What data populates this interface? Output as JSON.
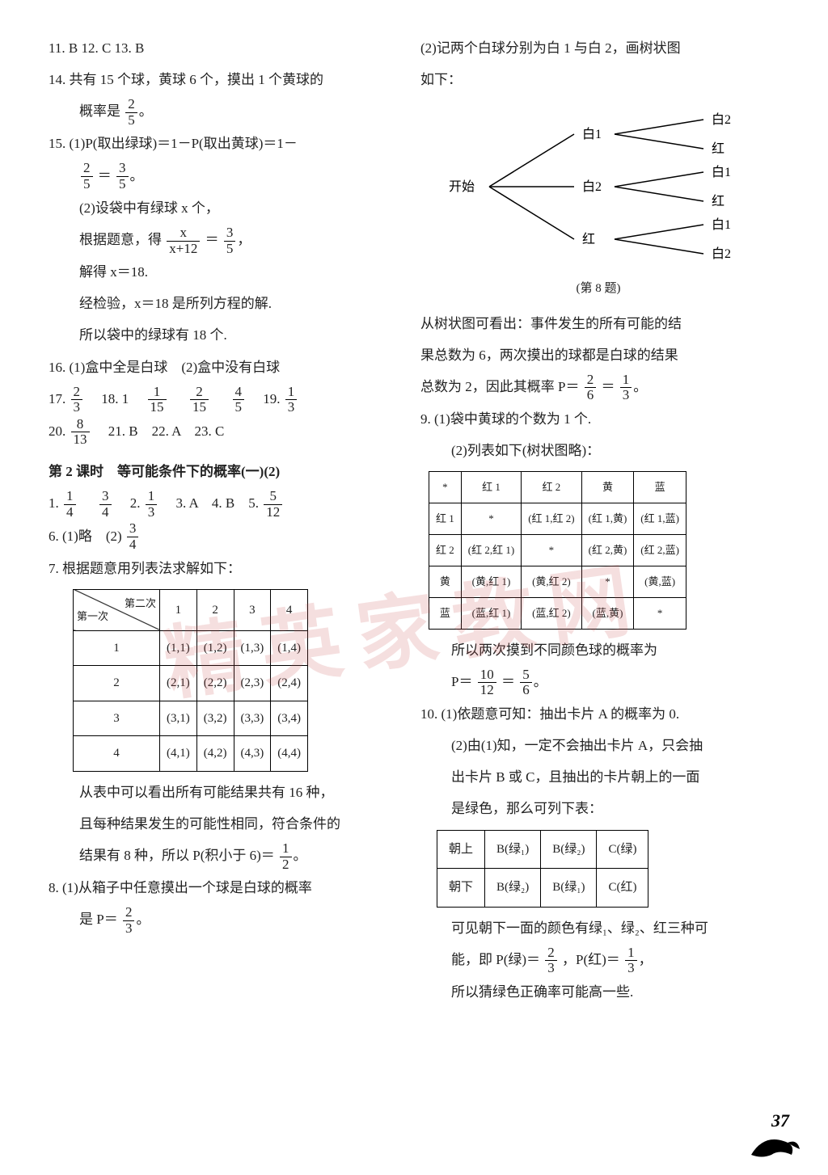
{
  "page_number": "37",
  "colors": {
    "text": "#222222",
    "background": "#ffffff",
    "border": "#000000",
    "watermark": "rgba(200,80,80,0.18)"
  },
  "watermark_text": "精英家教网",
  "left": {
    "l11": "11. B  12. C  13. B",
    "l14a": "14. 共有 15 个球，黄球 6 个，摸出 1 个黄球的",
    "l14b": "概率是",
    "f14n": "2",
    "f14d": "5",
    "l14c": "。",
    "l15a": "15. (1)P(取出绿球)＝1－P(取出黄球)＝1－",
    "f15an": "2",
    "f15ad": "5",
    "eq": "＝",
    "f15bn": "3",
    "f15bd": "5",
    "l15b": "。",
    "l15c": "(2)设袋中有绿球 x 个，",
    "l15d": "根据题意，得",
    "f15cn": "x",
    "f15cd": "x+12",
    "f15dn": "3",
    "f15dd": "5",
    "comma": "，",
    "l15e": "解得 x＝18.",
    "l15f": "经检验，x＝18 是所列方程的解.",
    "l15g": "所以袋中的绿球有 18 个.",
    "l16": "16. (1)盒中全是白球　(2)盒中没有白球",
    "l17a": "17.",
    "f17n": "2",
    "f17d": "3",
    "l18": "　18. 1　",
    "f18an": "1",
    "f18ad": "15",
    "sp": "　",
    "f18bn": "2",
    "f18bd": "15",
    "f18cn": "4",
    "f18cd": "5",
    "l19": "　19.",
    "f19n": "1",
    "f19d": "3",
    "l20a": "20.",
    "f20n": "8",
    "f20d": "13",
    "l20b": "　21. B　22. A　23. C",
    "sec2": "第 2 课时　等可能条件下的概率(一)(2)",
    "q1": "1.",
    "f1an": "1",
    "f1ad": "4",
    "f1bn": "3",
    "f1bd": "4",
    "q2": "　2.",
    "f2n": "1",
    "f2d": "3",
    "q345": "　3. A　4. B　5.",
    "f5n": "5",
    "f5d": "12",
    "q6": "6. (1)略　(2)",
    "f6n": "3",
    "f6d": "4",
    "q7": "7. 根据题意用列表法求解如下：",
    "t7": {
      "header": [
        "1",
        "2",
        "3",
        "4"
      ],
      "rowlbl": [
        "1",
        "2",
        "3",
        "4"
      ],
      "cells": [
        [
          "(1,1)",
          "(1,2)",
          "(1,3)",
          "(1,4)"
        ],
        [
          "(2,1)",
          "(2,2)",
          "(2,3)",
          "(2,4)"
        ],
        [
          "(3,1)",
          "(3,2)",
          "(3,3)",
          "(3,4)"
        ],
        [
          "(4,1)",
          "(4,2)",
          "(4,3)",
          "(4,4)"
        ]
      ],
      "diag_tr": "第二次",
      "diag_bl": "第一次"
    },
    "l7b": "从表中可以看出所有可能结果共有 16 种，",
    "l7c": "且每种结果发生的可能性相同，符合条件的",
    "l7d": "结果有 8 种，所以 P(积小于 6)＝",
    "f7n": "1",
    "f7d": "2",
    "dot": "。",
    "q8a": "8. (1)从箱子中任意摸出一个球是白球的概率",
    "q8b": "是 P＝",
    "f8n": "2",
    "f8d": "3"
  },
  "right": {
    "r1a": "(2)记两个白球分别为白 1 与白 2，画树状图",
    "r1b": "如下：",
    "tree": {
      "start": "开始",
      "level1": [
        "白1",
        "白2",
        "红"
      ],
      "level2": [
        [
          "白2",
          "红"
        ],
        [
          "白1",
          "红"
        ],
        [
          "白1",
          "白2"
        ]
      ]
    },
    "cap8": "(第 8 题)",
    "r2a": "从树状图可看出：事件发生的所有可能的结",
    "r2b": "果总数为 6，两次摸出的球都是白球的结果",
    "r2c": "总数为 2，因此其概率 P＝",
    "f2an": "2",
    "f2ad": "6",
    "eq": "＝",
    "f2bn": "1",
    "f2bd": "3",
    "dot": "。",
    "q9a": "9. (1)袋中黄球的个数为 1 个.",
    "q9b": "(2)列表如下(树状图略)：",
    "t9": {
      "header": [
        "*",
        "红 1",
        "红 2",
        "黄",
        "蓝"
      ],
      "rows": [
        [
          "红 1",
          "*",
          "(红 1,红 2)",
          "(红 1,黄)",
          "(红 1,蓝)"
        ],
        [
          "红 2",
          "(红 2,红 1)",
          "*",
          "(红 2,黄)",
          "(红 2,蓝)"
        ],
        [
          "黄",
          "(黄,红 1)",
          "(黄,红 2)",
          "*",
          "(黄,蓝)"
        ],
        [
          "蓝",
          "(蓝,红 1)",
          "(蓝,红 2)",
          "(蓝,黄)",
          "*"
        ]
      ]
    },
    "r9c": "所以两次摸到不同颜色球的概率为",
    "r9d": "P＝",
    "f9an": "10",
    "f9ad": "12",
    "f9bn": "5",
    "f9bd": "6",
    "q10a": "10. (1)依题意可知：抽出卡片 A 的概率为 0.",
    "q10b": "(2)由(1)知，一定不会抽出卡片 A，只会抽",
    "q10c": "出卡片 B 或 C，且抽出的卡片朝上的一面",
    "q10d": "是绿色，那么可列下表：",
    "t10": {
      "rows": [
        [
          "朝上",
          "B(绿₁)",
          "B(绿₂)",
          "C(绿)"
        ],
        [
          "朝下",
          "B(绿₂)",
          "B(绿₁)",
          "C(红)"
        ]
      ]
    },
    "r10e": "可见朝下一面的颜色有绿₁、绿₂、红三种可",
    "r10f": "能，即 P(绿)＝",
    "f10an": "2",
    "f10ad": "3",
    "r10g": "，P(红)＝",
    "f10bn": "1",
    "f10bd": "3",
    "comma": "，",
    "r10h": "所以猜绿色正确率可能高一些."
  }
}
